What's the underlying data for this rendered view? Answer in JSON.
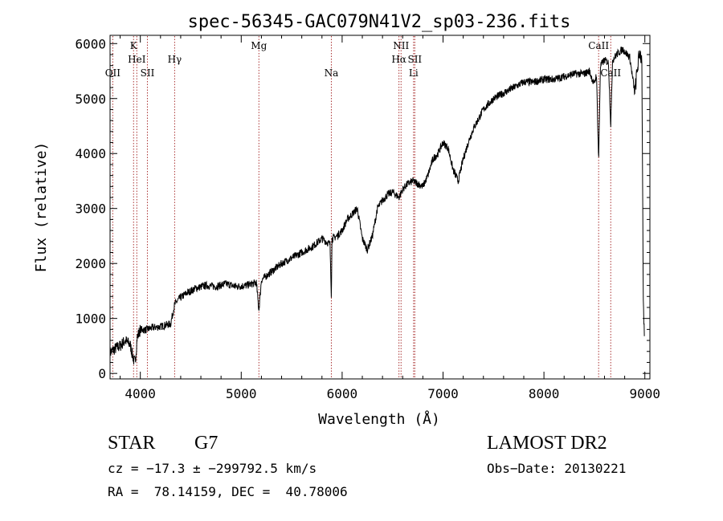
{
  "chart_data": {
    "type": "line",
    "title": "spec-56345-GAC079N41V2_sp03-236.fits",
    "xlabel": "Wavelength (Å)",
    "ylabel": "Flux (relative)",
    "xlim": [
      3700,
      9050
    ],
    "ylim": [
      -100,
      6150
    ],
    "xticks": [
      4000,
      5000,
      6000,
      7000,
      8000,
      9000
    ],
    "xtick_labels": [
      "4000",
      "5000",
      "6000",
      "7000",
      "8000",
      "9000"
    ],
    "yticks": [
      0,
      1000,
      2000,
      3000,
      4000,
      5000,
      6000
    ],
    "ytick_labels": [
      "0",
      "1000",
      "2000",
      "3000",
      "4000",
      "5000",
      "6000"
    ],
    "series": [
      {
        "name": "flux",
        "x": [
          3700,
          3750,
          3800,
          3850,
          3900,
          3933,
          3950,
          3968,
          4000,
          4050,
          4100,
          4150,
          4200,
          4250,
          4300,
          4340,
          4380,
          4450,
          4550,
          4650,
          4750,
          4850,
          4950,
          5050,
          5150,
          5175,
          5200,
          5300,
          5400,
          5500,
          5600,
          5700,
          5800,
          5880,
          5893,
          5900,
          5950,
          6000,
          6050,
          6100,
          6150,
          6200,
          6250,
          6300,
          6350,
          6400,
          6450,
          6500,
          6563,
          6600,
          6650,
          6700,
          6750,
          6800,
          6850,
          6900,
          6950,
          7000,
          7050,
          7100,
          7150,
          7200,
          7250,
          7300,
          7400,
          7500,
          7600,
          7700,
          7800,
          7900,
          8000,
          8100,
          8200,
          8300,
          8400,
          8450,
          8498,
          8520,
          8542,
          8560,
          8600,
          8640,
          8662,
          8680,
          8720,
          8780,
          8850,
          8900,
          8930,
          8950,
          8970,
          8985,
          8995
        ],
        "y": [
          380,
          450,
          500,
          600,
          520,
          250,
          200,
          650,
          800,
          790,
          820,
          840,
          850,
          880,
          900,
          1250,
          1350,
          1450,
          1550,
          1600,
          1580,
          1630,
          1580,
          1600,
          1650,
          1150,
          1700,
          1850,
          2000,
          2100,
          2200,
          2300,
          2450,
          2350,
          1400,
          2450,
          2500,
          2600,
          2800,
          2900,
          3000,
          2450,
          2250,
          2500,
          3000,
          3150,
          3250,
          3300,
          3200,
          3350,
          3450,
          3500,
          3450,
          3400,
          3600,
          3900,
          4000,
          4200,
          4100,
          3700,
          3500,
          3900,
          4200,
          4450,
          4800,
          5000,
          5100,
          5200,
          5300,
          5300,
          5350,
          5350,
          5400,
          5450,
          5450,
          5500,
          5250,
          5450,
          3900,
          5600,
          5700,
          5650,
          4500,
          5700,
          5800,
          5900,
          5750,
          5100,
          5600,
          5850,
          5700,
          1200,
          600
        ]
      }
    ],
    "lines": [
      {
        "label": "OII",
        "x": 3727,
        "row": 3
      },
      {
        "label": "K",
        "x": 3933,
        "row": 1
      },
      {
        "label": "HeI",
        "x": 3965,
        "row": 2
      },
      {
        "label": "SII",
        "x": 4070,
        "row": 3
      },
      {
        "label": "Hγ",
        "x": 4340,
        "row": 2
      },
      {
        "label": "Mg",
        "x": 5175,
        "row": 1
      },
      {
        "label": "Na",
        "x": 5893,
        "row": 3
      },
      {
        "label": "NII",
        "x": 6584,
        "row": 1
      },
      {
        "label": "Hα",
        "x": 6563,
        "row": 2
      },
      {
        "label": "SII",
        "x": 6720,
        "row": 2
      },
      {
        "label": "Li",
        "x": 6708,
        "row": 3
      },
      {
        "label": "CaII",
        "x": 8542,
        "row": 1
      },
      {
        "label": "CaII",
        "x": 8662,
        "row": 3
      }
    ]
  },
  "info": {
    "object_class": "STAR",
    "subclass": "G7",
    "survey": "LAMOST DR2",
    "cz": "cz = −17.3 ± −299792.5 km/s",
    "obs_date": "Obs−Date: 20130221",
    "coords": "RA =  78.14159, DEC =  40.78006"
  }
}
